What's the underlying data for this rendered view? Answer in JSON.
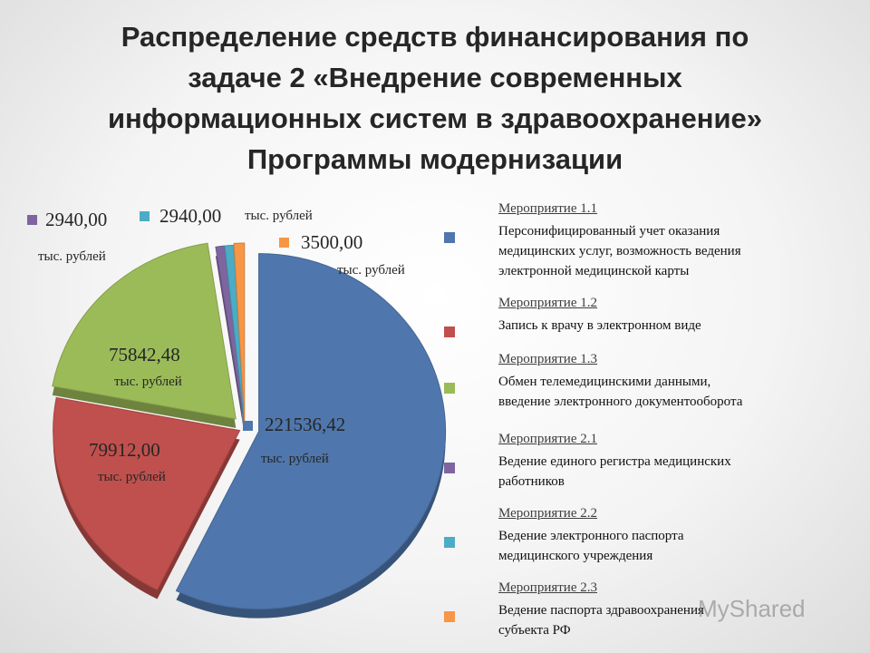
{
  "title_lines": [
    "Распределение средств финансирования по",
    "задаче 2 «Внедрение современных",
    "информационных систем в здравоохранение»",
    "Программы модернизации"
  ],
  "chart_data": {
    "type": "pie",
    "title": "Распределение средств финансирования по задаче 2 «Внедрение современных информационных систем в здравоохранение» Программы модернизации",
    "unit": "тыс. рублей",
    "legend_position": "right",
    "series": [
      {
        "name": "Мероприятие 1.1",
        "label": "221536,42",
        "value": 221536.42,
        "color": "#4f77ad"
      },
      {
        "name": "Мероприятие 1.2",
        "label": "79912,00",
        "value": 79912.0,
        "color": "#c0504d"
      },
      {
        "name": "Мероприятие 1.3",
        "label": "75842,48",
        "value": 75842.48,
        "color": "#9bbb59"
      },
      {
        "name": "Мероприятие 2.1",
        "label": "2940,00",
        "value": 2940.0,
        "color": "#7f65a0"
      },
      {
        "name": "Мероприятие 2.2",
        "label": "2940,00",
        "value": 2940.0,
        "color": "#4bacc6"
      },
      {
        "name": "Мероприятие 2.3",
        "label": "3500,00",
        "value": 3500.0,
        "color": "#f79646"
      }
    ]
  },
  "legend": [
    {
      "heading": "Мероприятие 1.1",
      "description": "Персонифицированный учет оказания\nмедицинских услуг, возможность ведения\nэлектронной медицинской карты",
      "color": "#4f77ad"
    },
    {
      "heading": "Мероприятие 1.2",
      "description": "Запись к врачу в электронном виде",
      "color": "#c0504d"
    },
    {
      "heading": "Мероприятие 1.3",
      "description": "Обмен телемедицинскими данными,\nвведение электронного документооборота",
      "color": "#9bbb59"
    },
    {
      "heading": "Мероприятие 2.1",
      "description": "Ведение единого регистра медицинских\nработников",
      "color": "#7f65a0"
    },
    {
      "heading": "Мероприятие 2.2",
      "description": "Ведение электронного паспорта\nмедицинского учреждения",
      "color": "#4bacc6"
    },
    {
      "heading": "Мероприятие 2.3",
      "description": "Ведение паспорта здравоохранения\nсубъекта РФ",
      "color": "#f79646"
    }
  ],
  "watermark": "MyShared"
}
